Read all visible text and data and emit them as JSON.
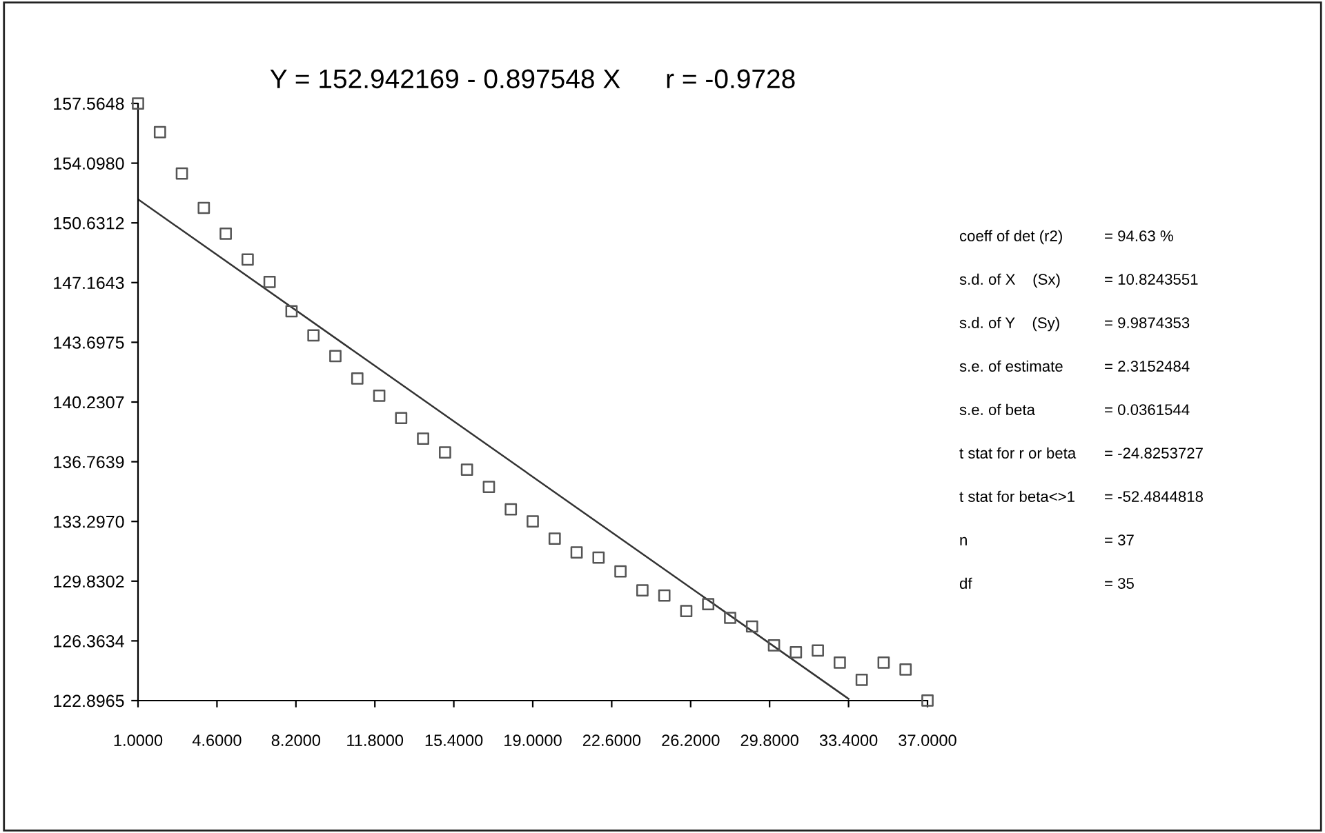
{
  "chart_data": {
    "type": "scatter",
    "title": "Y = 152.942169 - 0.897548 X      r = -0.9728",
    "series": [
      {
        "color": "#555555",
        "marker": "square",
        "x": [
          1,
          2,
          3,
          4,
          5,
          6,
          7,
          8,
          9,
          10,
          11,
          12,
          13,
          14,
          15,
          16,
          17,
          18,
          19,
          20,
          21,
          22,
          23,
          24,
          25,
          26,
          27,
          28,
          29,
          30,
          31,
          32,
          33,
          34,
          35,
          36,
          37
        ],
        "values": [
          157.56,
          155.9,
          153.5,
          151.5,
          150.0,
          148.5,
          147.2,
          145.5,
          144.1,
          142.9,
          141.6,
          140.6,
          139.3,
          138.1,
          137.3,
          136.3,
          135.3,
          134.0,
          133.3,
          132.3,
          131.5,
          131.2,
          130.4,
          129.3,
          129.0,
          128.1,
          128.5,
          127.7,
          127.2,
          126.1,
          125.7,
          125.8,
          125.1,
          124.1,
          125.1,
          124.7,
          122.9
        ]
      },
      {
        "type": "line",
        "color": "#333333",
        "marker": "none",
        "x": [
          1,
          33.4
        ],
        "values": [
          152.0,
          123.0
        ]
      }
    ],
    "xlim": [
      1,
      37
    ],
    "ylim": [
      122.8965,
      157.5648
    ],
    "xticks": [
      {
        "value": 1,
        "label": "1.0000"
      },
      {
        "value": 4.6,
        "label": "4.6000"
      },
      {
        "value": 8.2,
        "label": "8.2000"
      },
      {
        "value": 11.8,
        "label": "11.8000"
      },
      {
        "value": 15.4,
        "label": "15.4000"
      },
      {
        "value": 19,
        "label": "19.0000"
      },
      {
        "value": 22.6,
        "label": "22.6000"
      },
      {
        "value": 26.2,
        "label": "26.2000"
      },
      {
        "value": 29.8,
        "label": "29.8000"
      },
      {
        "value": 33.4,
        "label": "33.4000"
      },
      {
        "value": 37,
        "label": "37.0000"
      }
    ],
    "yticks": [
      157.5648,
      {
        "value": 154.098,
        "label": "154.0980"
      },
      150.6312,
      147.1643,
      143.6975,
      140.2307,
      136.7639,
      {
        "value": 133.297,
        "label": "133.2970"
      },
      129.8302,
      126.3634,
      122.8965
    ],
    "annotations": [
      "coeff of det (r2)",
      "= 94.63 %",
      "s.d. of X    (Sx)",
      "= 10.8243551",
      "s.d. of Y    (Sy)",
      "= 9.9874353",
      "s.e. of estimate",
      "= 2.3152484",
      "s.e. of beta",
      "= 0.0361544",
      "t stat for r or beta",
      "= -24.8253727",
      "t stat for beta<>1",
      "= -52.4844818",
      "n",
      "= 37",
      "df",
      "= 35"
    ]
  }
}
